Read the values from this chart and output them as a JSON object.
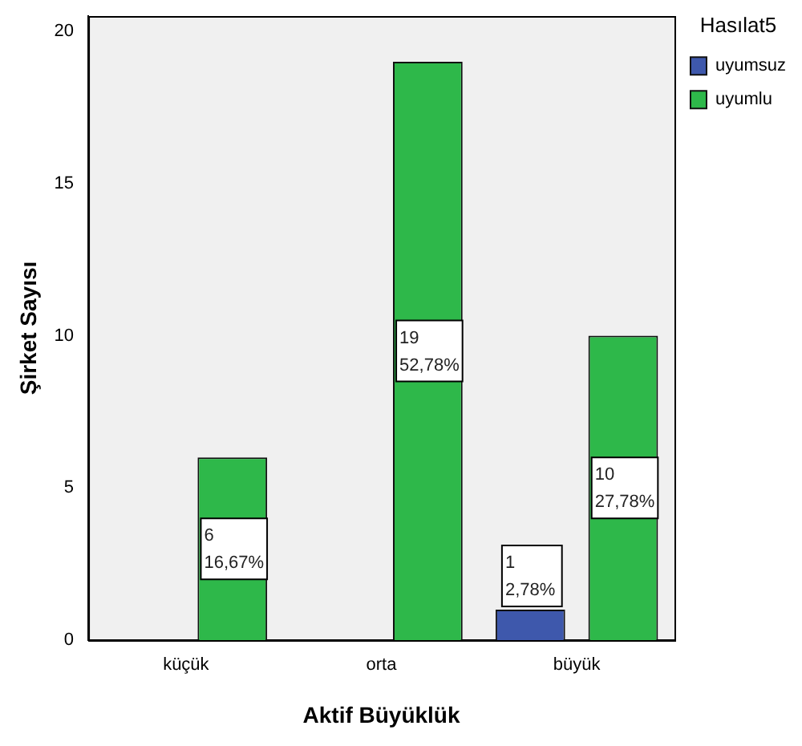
{
  "chart_data": {
    "type": "bar",
    "xlabel": "Aktif Büyüklük",
    "ylabel": "Şirket Sayısı",
    "legend_title": "Hasılat5",
    "categories": [
      "küçük",
      "orta",
      "büyük"
    ],
    "series": [
      {
        "name": "uyumsuz",
        "color": "#3e58ac",
        "values": [
          null,
          null,
          1
        ],
        "value_labels": [
          null,
          null,
          "1\n2,78%"
        ]
      },
      {
        "name": "uyumlu",
        "color": "#2eb84a",
        "values": [
          6,
          19,
          10
        ],
        "value_labels": [
          "6\n16,67%",
          "19\n52,78%",
          "10\n27,78%"
        ]
      }
    ],
    "ylim": [
      0,
      20.5
    ],
    "yticks": [
      0,
      5,
      10,
      15,
      20
    ],
    "grid": false,
    "legend": "top right"
  }
}
